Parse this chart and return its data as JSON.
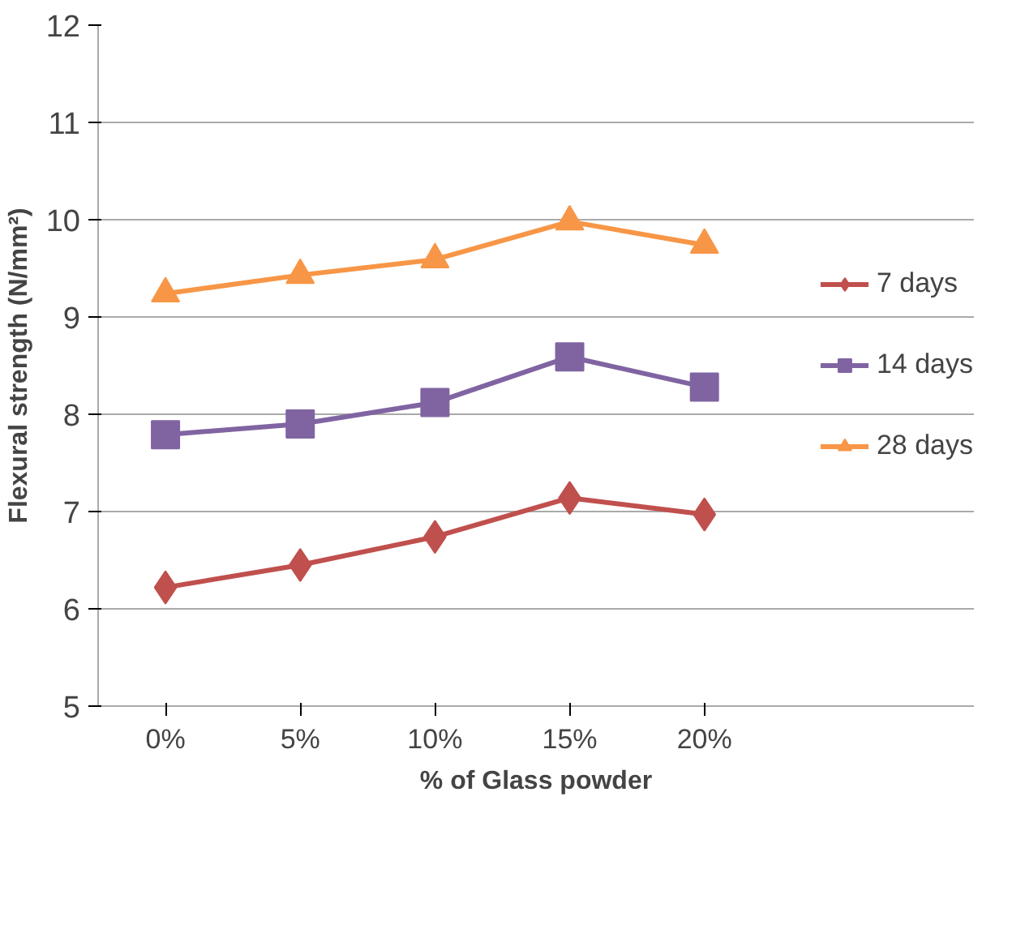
{
  "chart_data": {
    "type": "line",
    "xlabel": "% of Glass powder",
    "ylabel": "Flexural strength (N/mm²)",
    "categories": [
      "0%",
      "5%",
      "10%",
      "15%",
      "20%"
    ],
    "series": [
      {
        "name": "7 days",
        "color": "#c0504d",
        "marker": "diamond",
        "values": [
          6.22,
          6.45,
          6.74,
          7.14,
          6.97
        ]
      },
      {
        "name": "14 days",
        "color": "#8064a2",
        "marker": "square",
        "values": [
          7.79,
          7.9,
          8.12,
          8.59,
          8.28
        ]
      },
      {
        "name": "28 days",
        "color": "#f79646",
        "marker": "triangle",
        "values": [
          9.24,
          9.43,
          9.59,
          9.98,
          9.74
        ]
      }
    ],
    "ylim": [
      5,
      12
    ],
    "yticks": [
      5,
      6,
      7,
      8,
      9,
      10,
      11,
      12
    ],
    "grid": "y",
    "legend": "right"
  }
}
